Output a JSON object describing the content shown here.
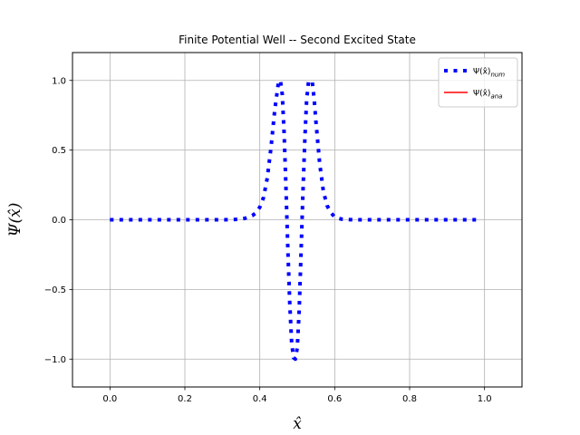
{
  "chart_data": {
    "type": "line",
    "title": "Finite Potential Well -- Second Excited State",
    "xlabel": "x̂",
    "ylabel": "Ψ(x̂)",
    "xlim": [
      -0.1,
      1.1
    ],
    "ylim": [
      -1.2,
      1.2
    ],
    "xticks": [
      0.0,
      0.2,
      0.4,
      0.6,
      0.8,
      1.0
    ],
    "xtick_labels": [
      "0.0",
      "0.2",
      "0.4",
      "0.6",
      "0.8",
      "1.0"
    ],
    "yticks": [
      -1.0,
      -0.5,
      0.0,
      0.5,
      1.0
    ],
    "ytick_labels": [
      "−1.0",
      "−0.5",
      "0.0",
      "0.5",
      "1.0"
    ],
    "grid": true,
    "legend_position": "top-right",
    "series": [
      {
        "name": "Ψ(x̂)num",
        "color": "#0000ff",
        "style": "dotted",
        "x": [
          0.0,
          0.05,
          0.1,
          0.15,
          0.2,
          0.25,
          0.3,
          0.32,
          0.34,
          0.36,
          0.38,
          0.39,
          0.4,
          0.41,
          0.42,
          0.43,
          0.44,
          0.45,
          0.455,
          0.46,
          0.465,
          0.47,
          0.475,
          0.48,
          0.485,
          0.49,
          0.495,
          0.5,
          0.505,
          0.51,
          0.515,
          0.52,
          0.525,
          0.53,
          0.535,
          0.54,
          0.545,
          0.55,
          0.56,
          0.57,
          0.58,
          0.59,
          0.6,
          0.61,
          0.62,
          0.64,
          0.66,
          0.68,
          0.7,
          0.75,
          0.8,
          0.85,
          0.9,
          0.95,
          0.98
        ],
        "y": [
          0.0,
          0.0,
          0.0,
          0.0,
          0.0,
          0.0,
          0.0,
          0.001,
          0.003,
          0.01,
          0.03,
          0.05,
          0.09,
          0.16,
          0.3,
          0.52,
          0.79,
          0.99,
          1.0,
          0.9,
          0.62,
          0.22,
          -0.22,
          -0.6,
          -0.88,
          -0.99,
          -1.0,
          -0.92,
          -0.66,
          -0.25,
          0.18,
          0.56,
          0.86,
          0.99,
          1.0,
          0.99,
          0.87,
          0.7,
          0.4,
          0.2,
          0.1,
          0.05,
          0.02,
          0.01,
          0.004,
          0.001,
          0.0,
          0.0,
          0.0,
          0.0,
          0.0,
          0.0,
          0.0,
          0.0,
          0.0
        ]
      },
      {
        "name": "Ψ(x̂)ana",
        "color": "#ff0000",
        "style": "solid",
        "x": [],
        "y": []
      }
    ],
    "legend": [
      {
        "base": "Ψ(x̂)",
        "sub": "num"
      },
      {
        "base": "Ψ(x̂)",
        "sub": "ana"
      }
    ]
  }
}
